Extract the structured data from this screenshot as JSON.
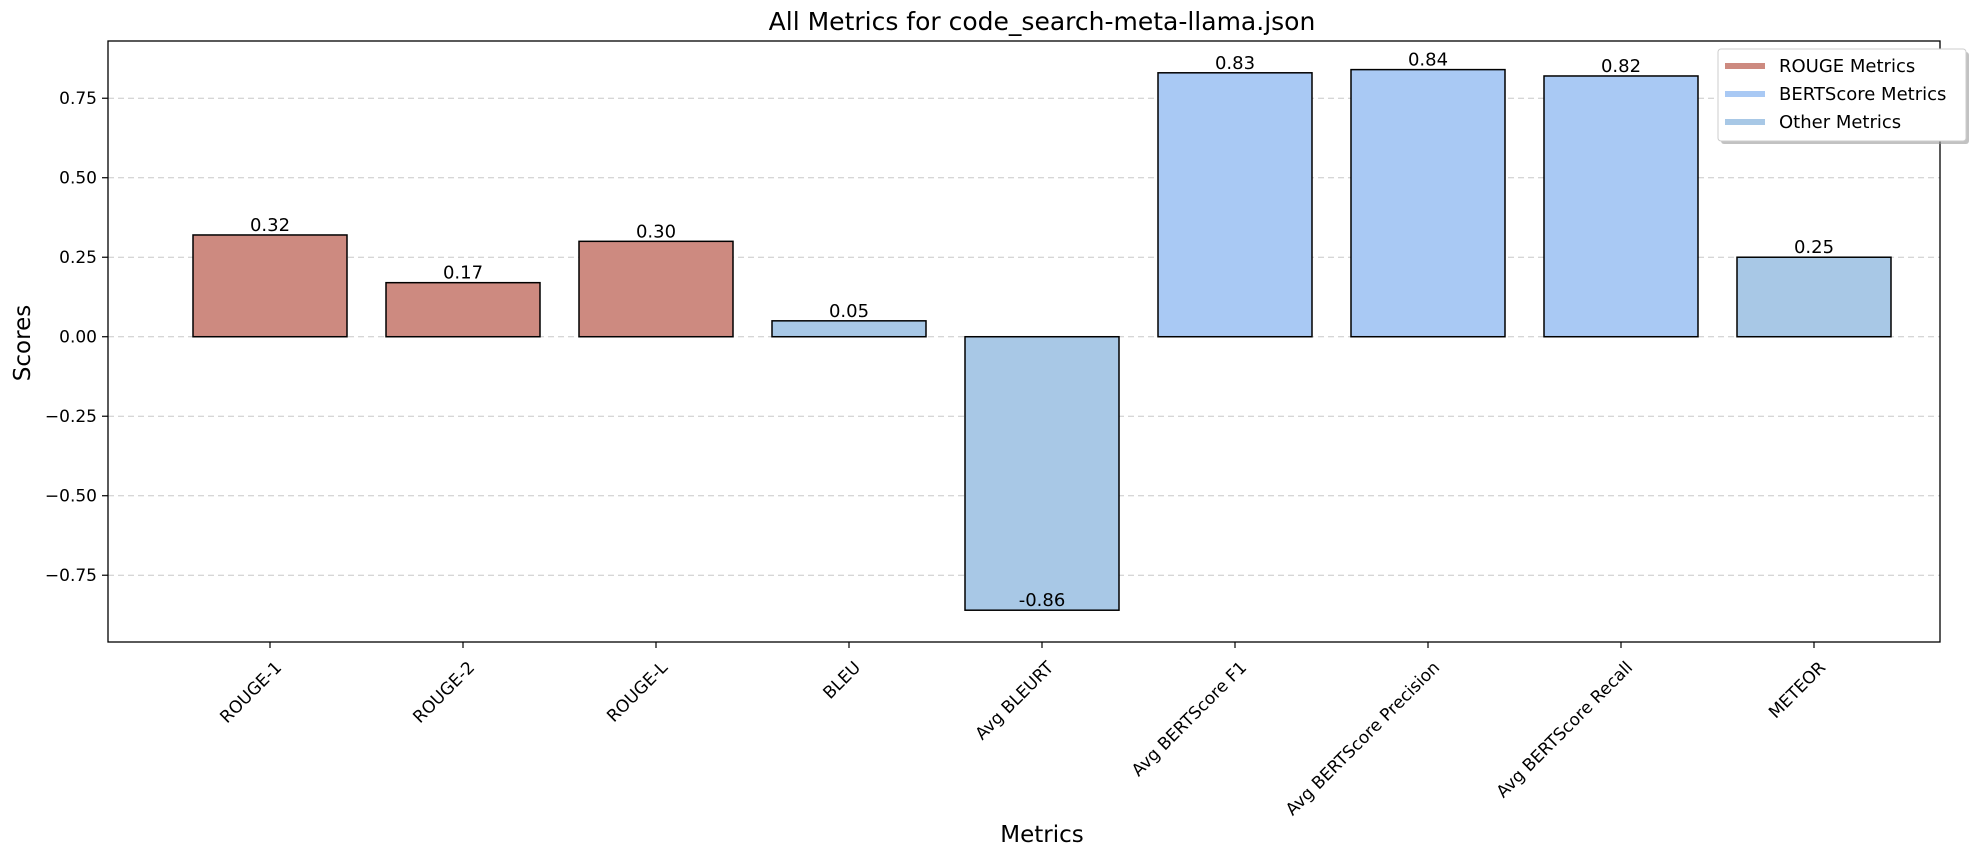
{
  "chart_data": {
    "type": "bar",
    "title": "All Metrics for code_search-meta-llama.json",
    "xlabel": "Metrics",
    "ylabel": "Scores",
    "categories": [
      "ROUGE-1",
      "ROUGE-2",
      "ROUGE-L",
      "BLEU",
      "Avg BLEURT",
      "Avg BERTScore F1",
      "Avg BERTScore Precision",
      "Avg BERTScore Recall",
      "METEOR"
    ],
    "values": [
      0.32,
      0.17,
      0.3,
      0.05,
      -0.86,
      0.83,
      0.84,
      0.82,
      0.25
    ],
    "data_labels": [
      "0.32",
      "0.17",
      "0.30",
      "0.05",
      "-0.86",
      "0.83",
      "0.84",
      "0.82",
      "0.25"
    ],
    "groups": [
      "ROUGE Metrics",
      "ROUGE Metrics",
      "ROUGE Metrics",
      "Other Metrics",
      "Other Metrics",
      "BERTScore Metrics",
      "BERTScore Metrics",
      "BERTScore Metrics",
      "Other Metrics"
    ],
    "ylim": [
      -0.96,
      0.93
    ],
    "yticks": [
      -0.75,
      -0.5,
      -0.25,
      0.0,
      0.25,
      0.5,
      0.75
    ],
    "ytick_labels": [
      "−0.75",
      "−0.50",
      "−0.25",
      "0.00",
      "0.25",
      "0.50",
      "0.75"
    ],
    "grid": true,
    "grid_axis": "y",
    "legend": {
      "position": "top-right",
      "entries": [
        {
          "label": "ROUGE Metrics",
          "color": "#cd8a80"
        },
        {
          "label": "BERTScore Metrics",
          "color": "#a9c9f4"
        },
        {
          "label": "Other Metrics",
          "color": "#a8c8e6"
        }
      ]
    },
    "colors": {
      "ROUGE Metrics": "#cd8a80",
      "BERTScore Metrics": "#a9c9f4",
      "Other Metrics": "#a8c8e6"
    }
  }
}
